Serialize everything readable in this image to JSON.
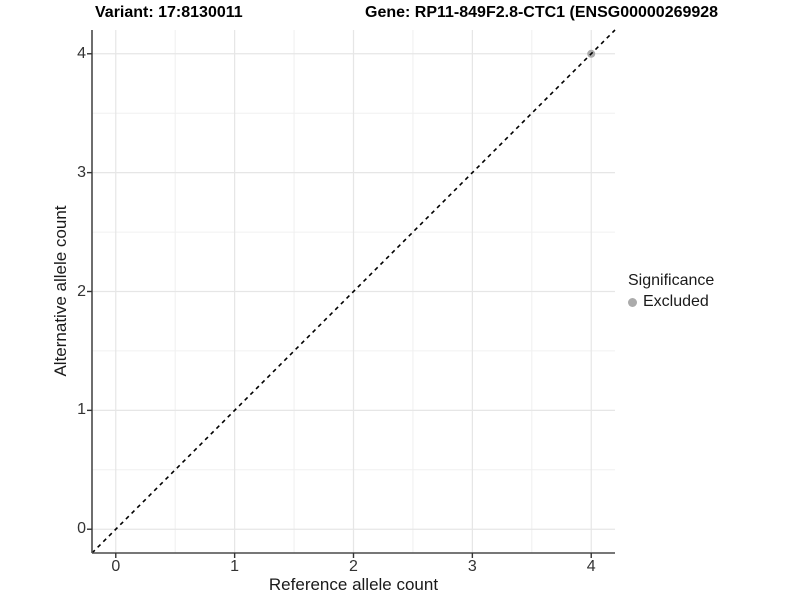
{
  "header": {
    "variant_title": "Variant: 17:8130011",
    "gene_title": "Gene: RP11-849F2.8-CTC1 (ENSG00000269928"
  },
  "chart_data": {
    "type": "scatter",
    "title": "Variant: 17:8130011 — Gene: RP11-849F2.8-CTC1 (ENSG00000269928",
    "xlabel": "Reference allele count",
    "ylabel": "Alternative allele count",
    "xlim": [
      -0.2,
      4.2
    ],
    "ylim": [
      -0.2,
      4.2
    ],
    "xticks": [
      0,
      1,
      2,
      3,
      4
    ],
    "yticks": [
      0,
      1,
      2,
      3,
      4
    ],
    "grid": "major and minor on, white panel background",
    "reference_line": {
      "type": "identity y=x",
      "style": "dashed",
      "color": "#000000"
    },
    "series": [
      {
        "name": "Excluded",
        "color": "#ababab",
        "points": [
          {
            "x": 4,
            "y": 4
          }
        ]
      }
    ],
    "legend": {
      "position": "right",
      "title": "Significance",
      "items": [
        {
          "label": "Excluded",
          "color": "#ababab"
        }
      ]
    },
    "colors": {
      "major_grid": "#e6e6e6",
      "minor_grid": "#f0f0f0",
      "axis_line": "#4a4a4a",
      "tick_text": "#333333"
    }
  }
}
